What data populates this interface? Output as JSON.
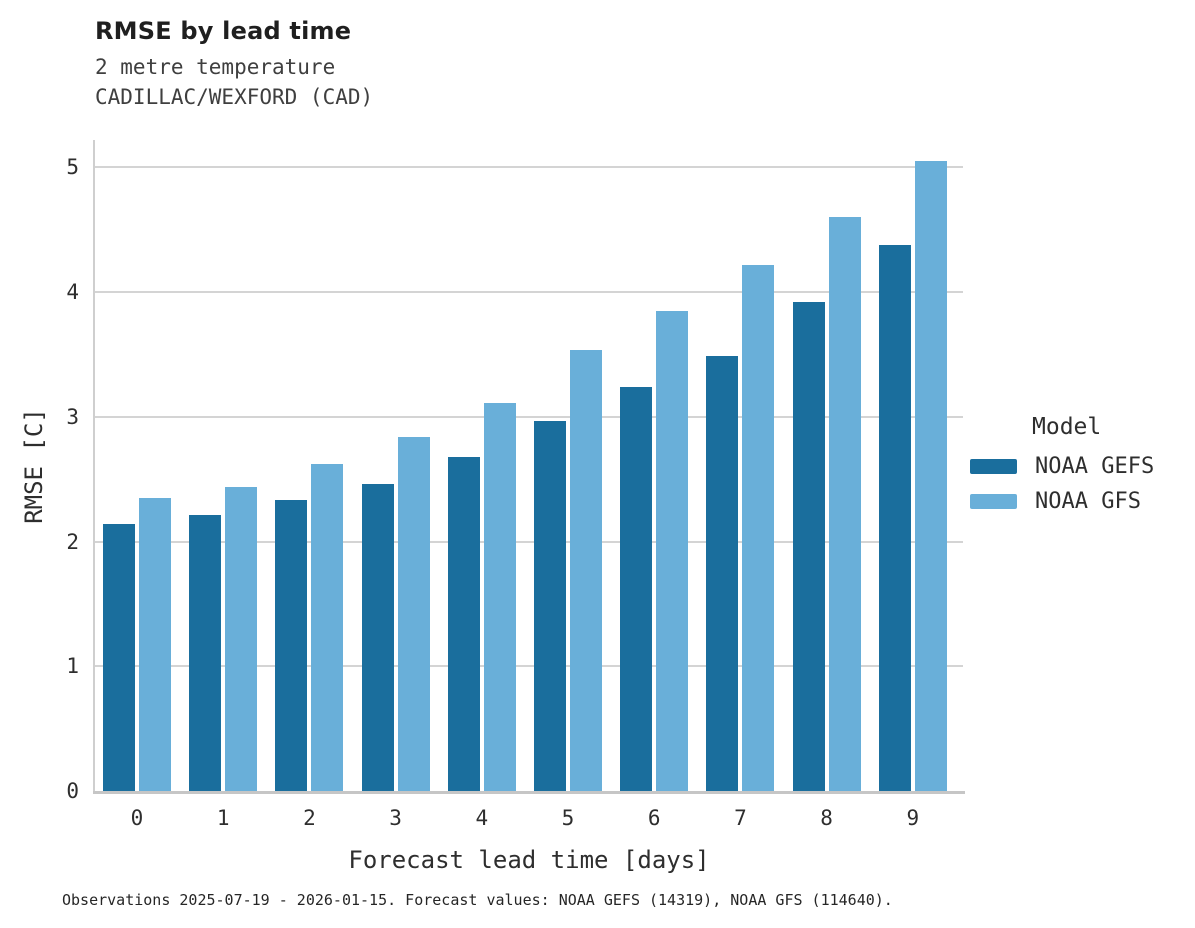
{
  "chart_data": {
    "type": "bar",
    "title": "RMSE by lead time",
    "subtitle": [
      "2 metre temperature",
      "CADILLAC/WEXFORD (CAD)"
    ],
    "categories": [
      "0",
      "1",
      "2",
      "3",
      "4",
      "5",
      "6",
      "7",
      "8",
      "9"
    ],
    "series": [
      {
        "name": "NOAA GEFS",
        "color": "#1A6E9D",
        "values": [
          2.14,
          2.21,
          2.33,
          2.46,
          2.68,
          2.97,
          3.24,
          3.49,
          3.92,
          4.38
        ]
      },
      {
        "name": "NOAA GFS",
        "color": "#69AFD9",
        "values": [
          2.35,
          2.44,
          2.62,
          2.84,
          3.11,
          3.54,
          3.85,
          4.22,
          4.6,
          5.05
        ]
      }
    ],
    "xlabel": "Forecast lead time [days]",
    "ylabel": "RMSE [C]",
    "ylim": [
      0,
      5.22
    ],
    "yticks": [
      0,
      1,
      2,
      3,
      4,
      5
    ],
    "grid": true,
    "legend_title": "Model",
    "legend_position": "right-center"
  },
  "footer": {
    "note": "Observations 2025-07-19 - 2026-01-15. Forecast values: NOAA GEFS (14319), NOAA GFS (114640)."
  }
}
